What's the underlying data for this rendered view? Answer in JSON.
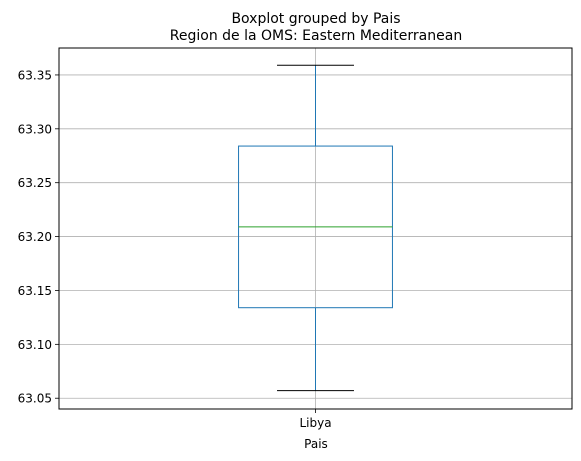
{
  "chart_data": {
    "type": "box",
    "suptitle": "Boxplot grouped by Pais",
    "title": "Region de la OMS: Eastern Mediterranean",
    "xlabel": "Pais",
    "ylabel": "",
    "categories": [
      "Libya"
    ],
    "boxes": [
      {
        "category": "Libya",
        "whisker_low": 63.057,
        "q1": 63.134,
        "median": 63.209,
        "q3": 63.284,
        "whisker_high": 63.359
      }
    ],
    "ylim": [
      63.04,
      63.375
    ],
    "yticks": [
      63.05,
      63.1,
      63.15,
      63.2,
      63.25,
      63.3,
      63.35
    ],
    "ytick_labels": [
      "63.05",
      "63.10",
      "63.15",
      "63.20",
      "63.25",
      "63.30",
      "63.35"
    ],
    "grid": true,
    "colors": {
      "box": "#1f77b4",
      "median": "#2ca02c",
      "whisker_cap": "#000000",
      "grid": "#b0b0b0"
    }
  }
}
